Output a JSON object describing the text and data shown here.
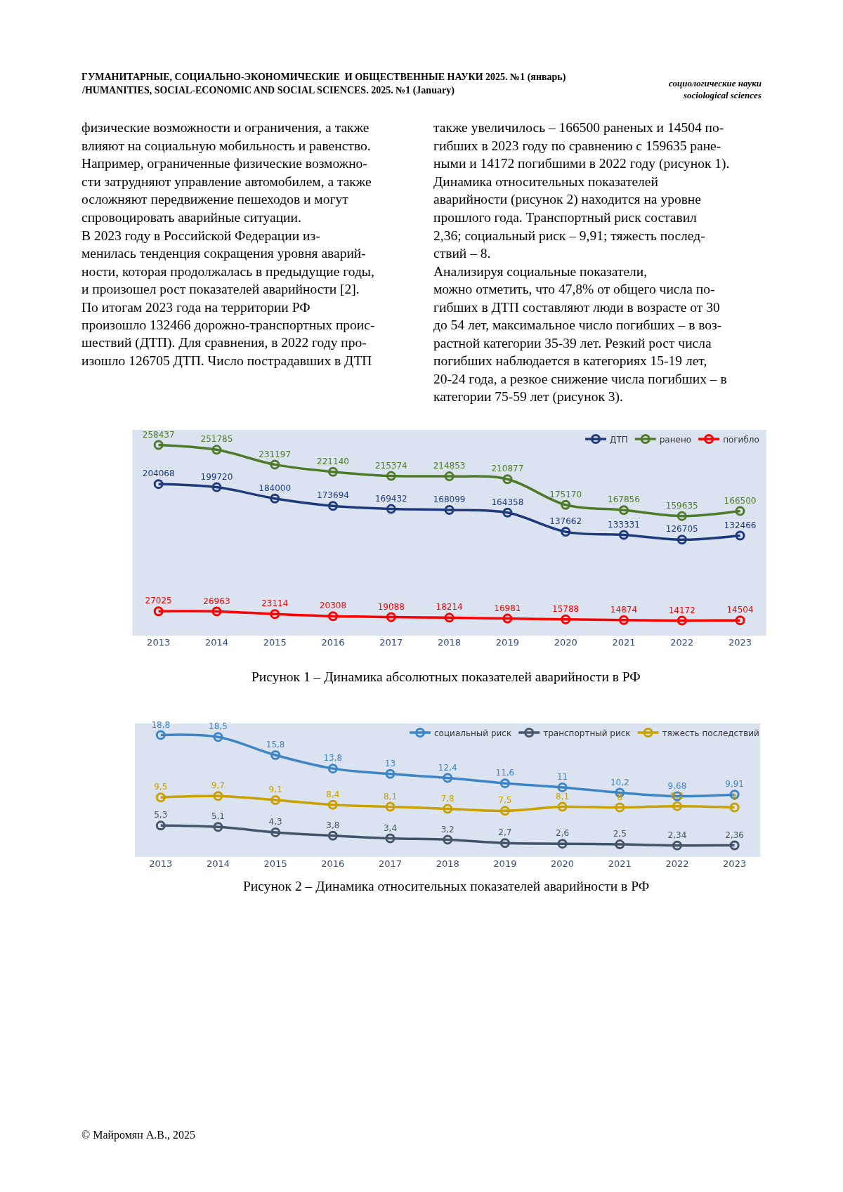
{
  "chart_data": [
    {
      "type": "other",
      "annotations": [
        "ГУМАНИТАРНЫЕ, СОЦИАЛЬНО-ЭКОНОМИЧЕСКИЕ  И ОБЩЕСТВЕННЫЕ НАУКИ 2025. №1 (январь)",
        "/HUMANITIES, SOCIAL-ECONOMIC AND SOCIAL SCIENCES. 2025. №1 (January)"
      ]
    },
    {
      "type": "other",
      "annotations": [
        "социологические науки",
        "sociological sciences"
      ]
    },
    {
      "type": "other",
      "annotations": [
        "физические возможности и ограничения, а также",
        "влияют на социальную мобильность и равенство.",
        "Например, ограниченные физические возможно-",
        "сти затрудняют управление автомобилем, а также",
        "осложняют передвижение пешеходов и могут",
        "спровоцировать аварийные ситуации.",
        "В 2023 году в Российской Федерации из-",
        "менилась тенденция сокращения уровня аварий-",
        "ности, которая продолжалась в предыдущие годы,",
        "и произошел рост показателей аварийности [2].",
        "По итогам 2023 года на территории РФ",
        "произошло 132466 дорожно-транспортных проис-",
        "шествий (ДТП). Для сравнения, в 2022 году про-",
        "изошло 126705 ДТП. Число пострадавших в ДТП"
      ]
    },
    {
      "type": "other",
      "annotations": [
        "также увеличилось – 166500 раненых и 14504 по-",
        "гибших в 2023 году по сравнению с 159635 ране-",
        "ными и 14172 погибшими в 2022 году (рисунок 1).",
        "Динамика относительных показателей",
        "аварийности (рисунок 2) находится на уровне",
        "прошлого года. Транспортный риск составил",
        "2,36; социальный риск – 9,91; тяжесть послед-",
        "ствий – 8.",
        "Анализируя социальные показатели,",
        "можно отметить, что 47,8% от общего числа по-",
        "гибших в ДТП составляют люди в возрасте от 30",
        "до 54 лет, максимальное число погибших – в воз-",
        "растной категории 35-39 лет. Резкий рост числа",
        "погибших наблюдается в категориях 15-19 лет,",
        "20-24 года, а резкое снижение числа погибших – в",
        "категории 75-59 лет (рисунок 3)."
      ]
    },
    {
      "type": "line",
      "categories": [
        "2013",
        "2014",
        "2015",
        "2016",
        "2017",
        "2018",
        "2019",
        "2020",
        "2021",
        "2022",
        "2023"
      ],
      "legend": "top right",
      "marker": "circle",
      "data_labels": true,
      "grid": false,
      "annotations": [
        "Рисунок 1 – Динамика абсолютных показателей аварийности в РФ"
      ],
      "series": [
        {
          "name": "ДТП",
          "color": "#1f3a7a",
          "values": [
            204068,
            199720,
            184000,
            173694,
            169432,
            168099,
            164358,
            137662,
            133331,
            126705,
            132466
          ]
        },
        {
          "name": "ранено",
          "color": "#4e7a2a",
          "values": [
            258437,
            251785,
            231197,
            221140,
            215374,
            214853,
            210877,
            175170,
            167856,
            159635,
            166500
          ]
        },
        {
          "name": "погибло",
          "color": "#ff0000",
          "values": [
            27025,
            26963,
            23114,
            20308,
            19088,
            18214,
            16981,
            15788,
            14874,
            14172,
            14504
          ]
        }
      ]
    },
    {
      "type": "line",
      "categories": [
        "2013",
        "2014",
        "2015",
        "2016",
        "2017",
        "2018",
        "2019",
        "2020",
        "2021",
        "2022",
        "2023"
      ],
      "legend": "top right",
      "marker": "circle",
      "grid": false,
      "annotations": [
        "Рисунок 2 – Динамика относительных показателей аварийности в РФ"
      ],
      "series": [
        {
          "name": "социальный риск",
          "color": "#3d85c6",
          "values": [
            18.8,
            18.5,
            15.8,
            13.8,
            13,
            12.4,
            11.6,
            11,
            10.2,
            9.68,
            9.91
          ],
          "value_labels": [
            "18,8",
            "18,5",
            "15,8",
            "13,8",
            "13",
            "12,4",
            "11,6",
            "11",
            "10,2",
            "9,68",
            "9,91"
          ]
        },
        {
          "name": "транспортный риск",
          "color": "#44546a",
          "values": [
            5.3,
            5.1,
            4.3,
            3.8,
            3.4,
            3.2,
            2.7,
            2.6,
            2.5,
            2.34,
            2.36
          ],
          "value_labels": [
            "5,3",
            "5,1",
            "4,3",
            "3,8",
            "3,4",
            "3,2",
            "2,7",
            "2,6",
            "2,5",
            "2,34",
            "2,36"
          ]
        },
        {
          "name": "тяжесть последствий",
          "color": "#c9a100",
          "values": [
            9.5,
            9.7,
            9.1,
            8.4,
            8.1,
            7.8,
            7.5,
            8.1,
            8,
            8.2,
            8
          ],
          "value_labels": [
            "9,5",
            "9,7",
            "9,1",
            "8,4",
            "8,1",
            "7,8",
            "7,5",
            "8,1",
            "8",
            "8,2",
            "8"
          ]
        }
      ]
    },
    {
      "type": "other",
      "annotations": [
        "© Майромян А.В., 2025"
      ]
    }
  ]
}
